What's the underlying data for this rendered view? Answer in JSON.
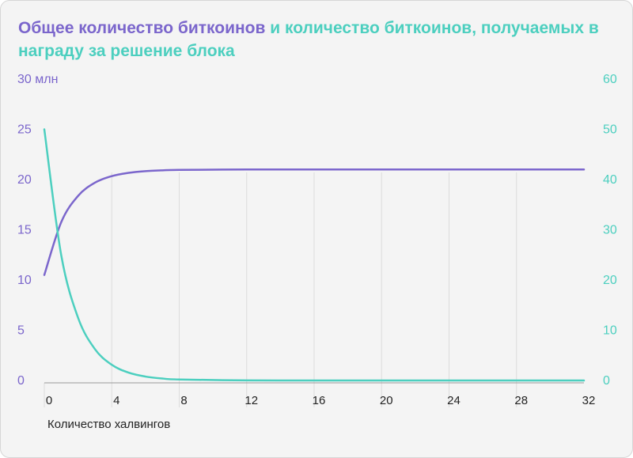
{
  "title": {
    "part1": "Общее количество биткоинов",
    "part2": " и количество биткоинов, получаемых в награду за решение блока"
  },
  "colors": {
    "total_series": "#7b66cc",
    "reward_series": "#4ccfbf",
    "grid": "#dcdcdc",
    "background": "#f4f4f4"
  },
  "chart_data": {
    "type": "line",
    "title": "Общее количество биткоинов и количество биткоинов, получаемых в награду за решение блока",
    "xlabel": "Количество халвингов",
    "xlim": [
      0,
      32
    ],
    "x_ticks": [
      "0",
      "4",
      "8",
      "12",
      "16",
      "20",
      "24",
      "28",
      "32"
    ],
    "ylim_left": [
      0,
      30
    ],
    "y_ticks_left": [
      "0",
      "5",
      "10",
      "15",
      "20",
      "25",
      "30 млн"
    ],
    "ylim_right": [
      0,
      60
    ],
    "y_ticks_right": [
      "0",
      "10",
      "20",
      "30",
      "40",
      "50",
      "60"
    ],
    "grid": "vertical",
    "series": [
      {
        "axis": "left",
        "x": [
          0,
          1,
          2,
          3,
          4,
          5,
          6,
          7,
          8,
          12,
          16,
          20,
          24,
          28,
          32
        ],
        "values": [
          10.5,
          15.75,
          18.375,
          19.69,
          20.34,
          20.67,
          20.84,
          20.92,
          20.96,
          21.0,
          21.0,
          21.0,
          21.0,
          21.0,
          21.0
        ]
      },
      {
        "axis": "right",
        "x": [
          0,
          1,
          2,
          3,
          4,
          5,
          6,
          7,
          8,
          12,
          16,
          20,
          24,
          28,
          32
        ],
        "values": [
          50,
          25,
          12.5,
          6.25,
          3.125,
          1.56,
          0.78,
          0.39,
          0.2,
          0.012,
          0.001,
          0,
          0,
          0,
          0
        ]
      }
    ]
  }
}
